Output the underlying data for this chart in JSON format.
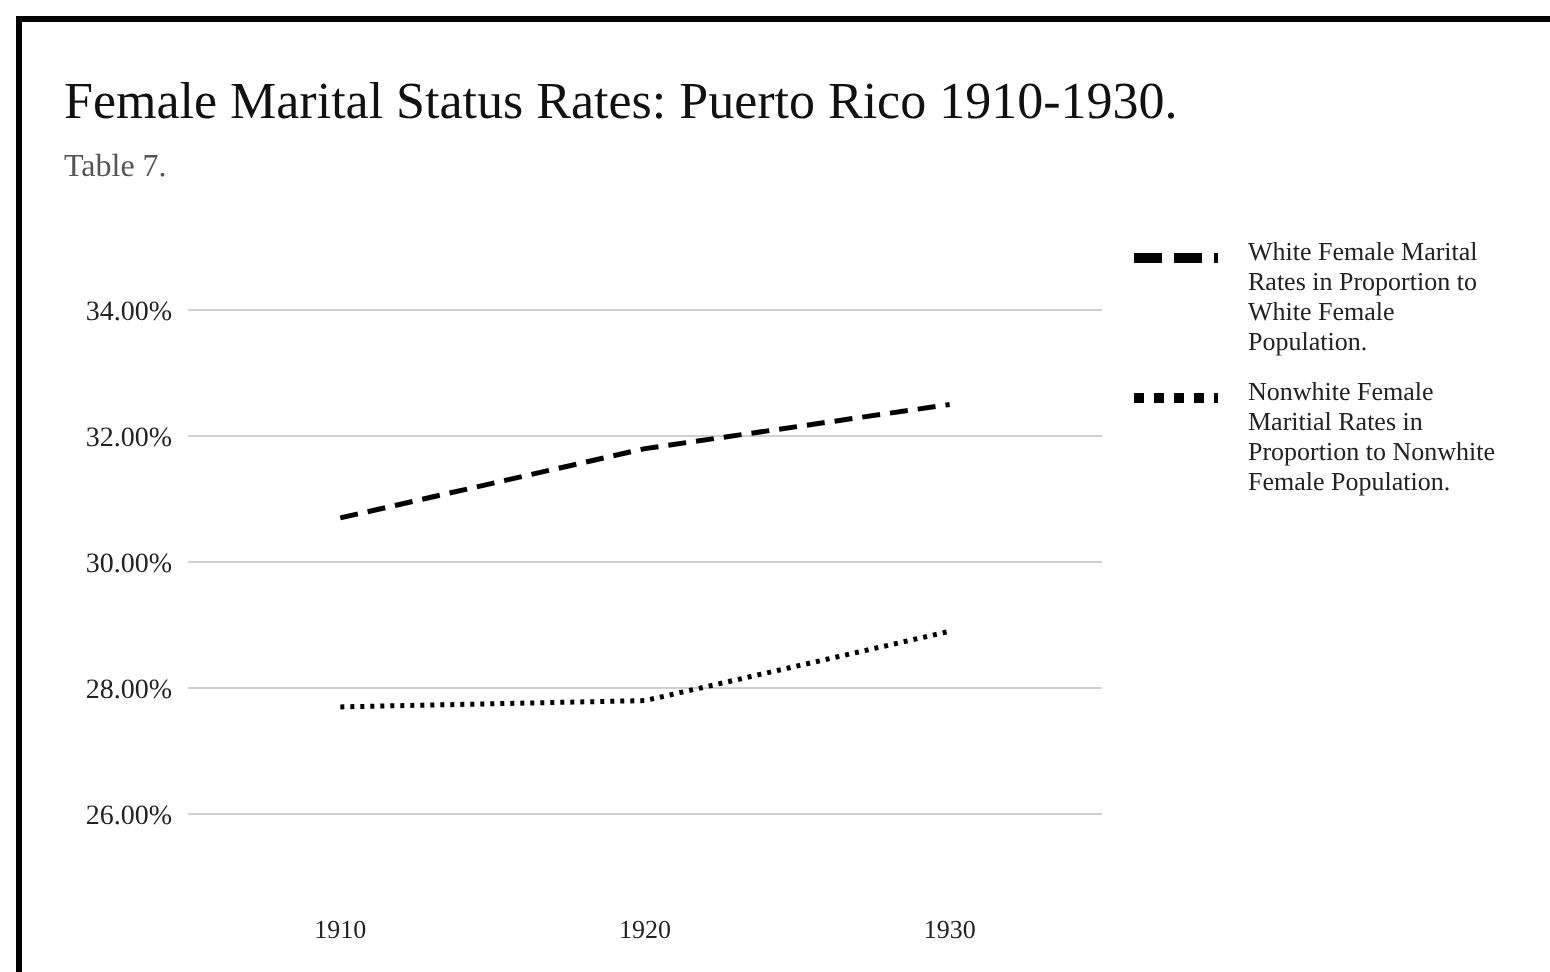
{
  "chart_data": {
    "type": "line",
    "title": "Female Marital Status Rates: Puerto Rico 1910-1930.",
    "subtitle": "Table 7.",
    "categories": [
      "1910",
      "1920",
      "1930"
    ],
    "series": [
      {
        "name": "White Female Marital Rates in Proportion to White Female Population.",
        "color": "#000000",
        "line_style": "dashed",
        "values": [
          30.7,
          31.8,
          32.5
        ]
      },
      {
        "name": "Nonwhite Female Maritial Rates in Proportion to Nonwhite Female Population.",
        "color": "#000000",
        "line_style": "dotted",
        "values": [
          27.7,
          27.8,
          28.9
        ]
      }
    ],
    "ylim": [
      26,
      34
    ],
    "yticks": [
      {
        "value": 26,
        "label": "26.00%"
      },
      {
        "value": 28,
        "label": "28.00%"
      },
      {
        "value": 30,
        "label": "30.00%"
      },
      {
        "value": 32,
        "label": "32.00%"
      },
      {
        "value": 34,
        "label": "34.00%"
      }
    ],
    "grid": "y",
    "legend": "top right",
    "marker": "none"
  }
}
